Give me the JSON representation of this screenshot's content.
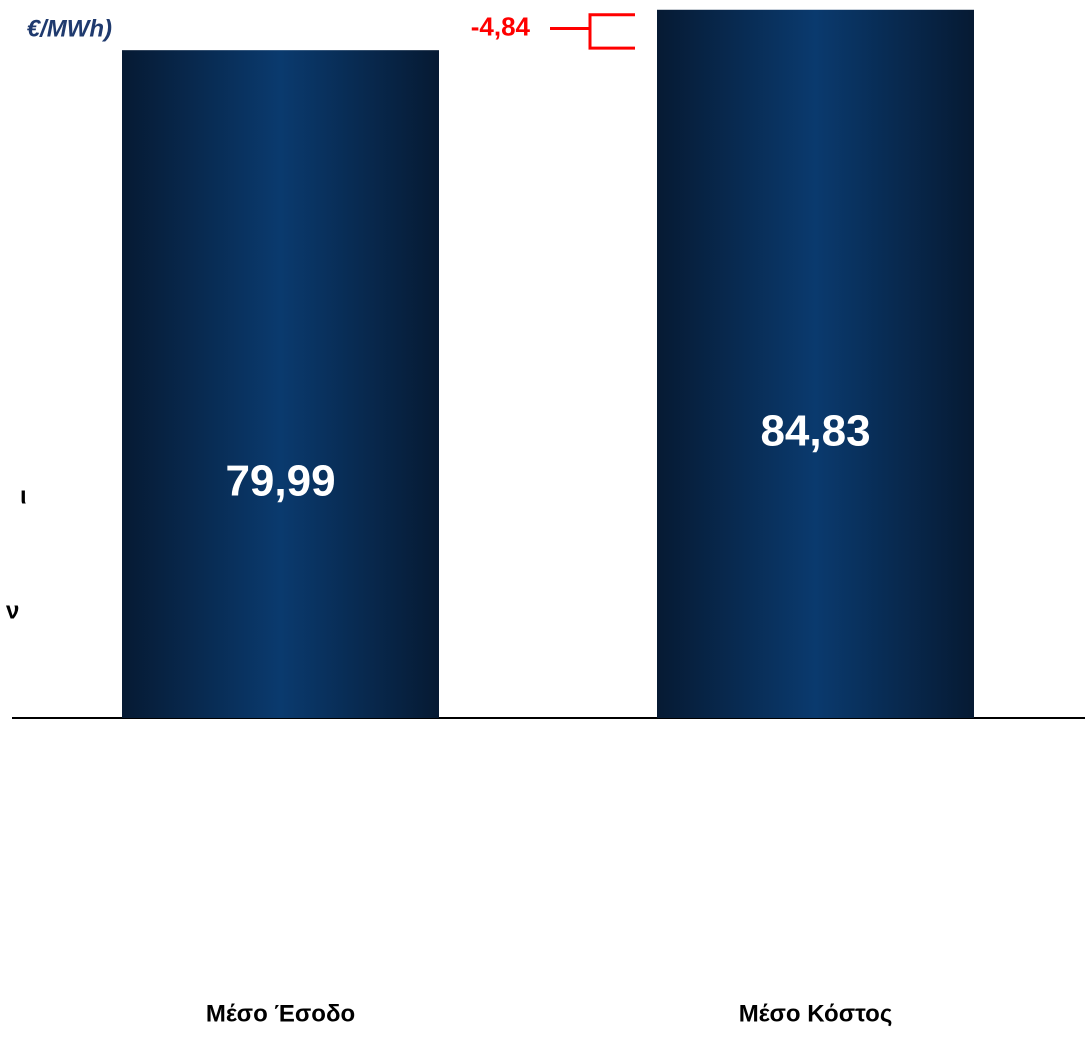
{
  "chart_data": {
    "type": "bar",
    "title": "€/MWh)",
    "categories": [
      "Μέσο Έσοδο",
      "Μέσο Κόστος"
    ],
    "values": [
      79.99,
      84.83
    ],
    "value_labels": [
      "79,99",
      "84,83"
    ],
    "difference": {
      "value": -4.84,
      "label": "-4,84"
    },
    "annotations": [
      "ι",
      "ν"
    ],
    "color": "#0a3a6e",
    "edge_color": "#061a33",
    "difference_color": "#ff0000",
    "ylim": [
      0,
      86
    ]
  }
}
